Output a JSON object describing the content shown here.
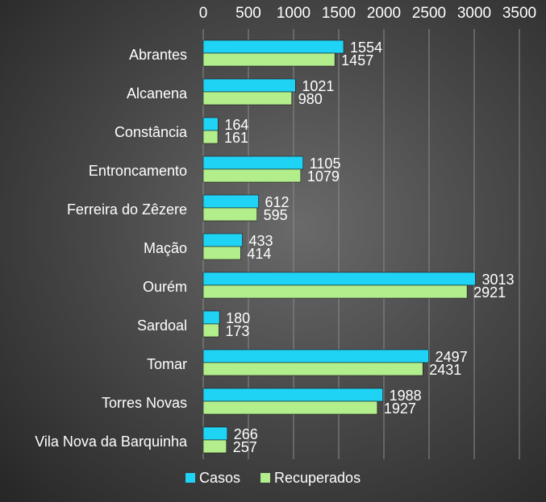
{
  "chart_data": {
    "type": "bar",
    "orientation": "horizontal",
    "categories": [
      "Abrantes",
      "Alcanena",
      "Constância",
      "Entroncamento",
      "Ferreira do Zêzere",
      "Mação",
      "Ourém",
      "Sardoal",
      "Tomar",
      "Torres Novas",
      "Vila Nova da Barquinha"
    ],
    "series": [
      {
        "name": "Casos",
        "color": "#1fd3f5",
        "values": [
          1554,
          1021,
          164,
          1105,
          612,
          433,
          3013,
          180,
          2497,
          1988,
          266
        ]
      },
      {
        "name": "Recuperados",
        "color": "#b2ee8c",
        "values": [
          1457,
          980,
          161,
          1079,
          595,
          414,
          2921,
          173,
          2431,
          1927,
          257
        ]
      }
    ],
    "xlim": [
      0,
      3500
    ],
    "xticks": [
      0,
      500,
      1000,
      1500,
      2000,
      2500,
      3000,
      3500
    ],
    "x_axis_position": "top",
    "grid": true,
    "legend": "bottom"
  }
}
